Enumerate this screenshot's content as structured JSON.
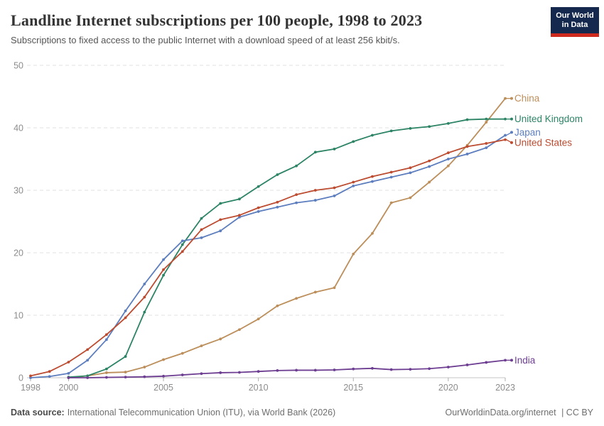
{
  "header": {
    "title": "Landline Internet subscriptions per 100 people, 1998 to 2023",
    "subtitle": "Subscriptions to fixed access to the public Internet with a download speed of at least 256 kbit/s.",
    "logo": {
      "line1": "Our World",
      "line2": "in Data",
      "bg_color": "#14294D",
      "accent_color": "#CE2B1E"
    }
  },
  "footer": {
    "datasource_label": "Data source:",
    "datasource_text": "International Telecommunication Union (ITU), via World Bank (2026)",
    "link_text": "OurWorldinData.org/internet",
    "license": "| CC BY"
  },
  "chart_data": {
    "type": "line",
    "title": "Landline Internet subscriptions per 100 people, 1998 to 2023",
    "xlabel": "",
    "ylabel": "",
    "xlim": [
      1998,
      2023
    ],
    "ylim": [
      0,
      50
    ],
    "xticks": [
      1998,
      2000,
      2005,
      2010,
      2015,
      2020,
      2023
    ],
    "yticks": [
      0,
      10,
      20,
      30,
      40,
      50
    ],
    "grid": "horizontal-dashed",
    "legend_position": "end-of-line-labels",
    "x": [
      1998,
      1999,
      2000,
      2001,
      2002,
      2003,
      2004,
      2005,
      2006,
      2007,
      2008,
      2009,
      2010,
      2011,
      2012,
      2013,
      2014,
      2015,
      2016,
      2017,
      2018,
      2019,
      2020,
      2021,
      2022,
      2023
    ],
    "series": [
      {
        "name": "China",
        "color": "#BC8E5A",
        "values": [
          null,
          null,
          0.0,
          0.3,
          0.8,
          0.9,
          1.7,
          2.9,
          3.9,
          5.1,
          6.2,
          7.7,
          9.4,
          11.5,
          12.7,
          13.7,
          14.4,
          19.8,
          23.1,
          28.0,
          28.8,
          31.3,
          33.9,
          37.2,
          40.9,
          44.7
        ]
      },
      {
        "name": "United Kingdom",
        "color": "#2C8465",
        "values": [
          null,
          null,
          0.1,
          0.3,
          1.4,
          3.4,
          10.5,
          16.4,
          21.3,
          25.5,
          27.9,
          28.6,
          30.6,
          32.5,
          33.9,
          36.1,
          36.6,
          37.8,
          38.8,
          39.5,
          39.9,
          40.2,
          40.7,
          41.3,
          41.4,
          41.4
        ]
      },
      {
        "name": "Japan",
        "color": "#5C7DBE",
        "values": [
          0.0,
          0.2,
          0.7,
          2.8,
          6.1,
          10.7,
          15.0,
          18.9,
          21.9,
          22.4,
          23.5,
          25.7,
          26.6,
          27.3,
          28.0,
          28.4,
          29.1,
          30.7,
          31.4,
          32.1,
          32.8,
          33.8,
          35.0,
          35.8,
          36.8,
          38.8
        ]
      },
      {
        "name": "United States",
        "color": "#BC4B30",
        "values": [
          0.3,
          1.0,
          2.5,
          4.5,
          6.9,
          9.6,
          12.9,
          17.3,
          20.2,
          23.7,
          25.3,
          26.0,
          27.2,
          28.1,
          29.3,
          30.0,
          30.4,
          31.3,
          32.2,
          32.9,
          33.6,
          34.7,
          36.0,
          37.0,
          37.5,
          38.1
        ]
      },
      {
        "name": "India",
        "color": "#6D3E91",
        "values": [
          null,
          null,
          0.0,
          0.0,
          0.05,
          0.1,
          0.15,
          0.25,
          0.45,
          0.65,
          0.8,
          0.85,
          1.0,
          1.15,
          1.2,
          1.2,
          1.25,
          1.4,
          1.5,
          1.3,
          1.35,
          1.45,
          1.7,
          2.05,
          2.45,
          2.8
        ]
      }
    ]
  }
}
